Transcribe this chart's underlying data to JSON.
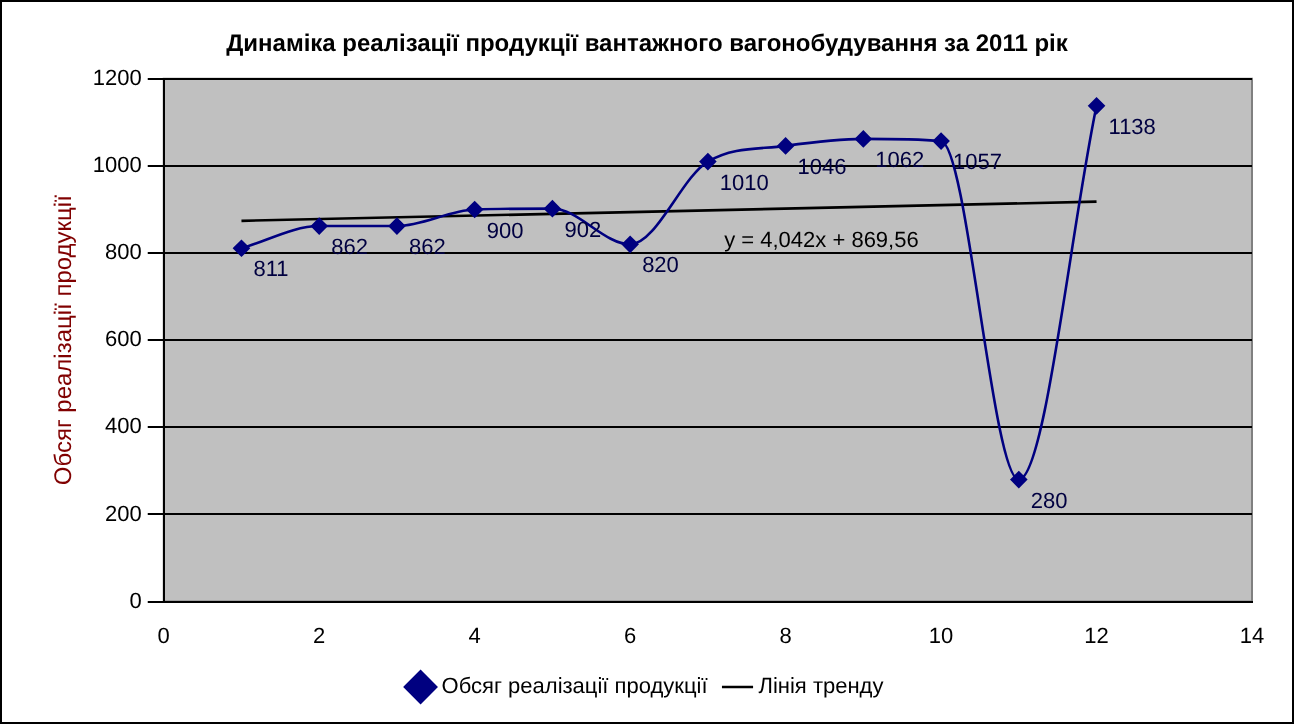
{
  "chart_data": {
    "type": "line",
    "title": "Динаміка реалізації продукції вантажного вагонобудування за 2011 рік",
    "ylabel": "Обсяг реалізації продукції",
    "xlim": [
      0,
      14
    ],
    "xticks": [
      0,
      2,
      4,
      6,
      8,
      10,
      12,
      14
    ],
    "ylim": [
      0,
      1200
    ],
    "yticks": [
      0,
      200,
      400,
      600,
      800,
      1000,
      1200
    ],
    "grid": "y",
    "legend": "bottom",
    "series": [
      {
        "name": "Обсяг реалізації продукції",
        "color": "#000080",
        "marker": "diamond",
        "x": [
          1,
          2,
          3,
          4,
          5,
          6,
          7,
          8,
          9,
          10,
          11,
          12
        ],
        "values": [
          811,
          862,
          862,
          900,
          902,
          820,
          1010,
          1046,
          1062,
          1057,
          280,
          1138
        ],
        "value_labels": [
          "811",
          "862",
          "862",
          "900",
          "902",
          "820",
          "1010",
          "1046",
          "1062",
          "1057",
          "280",
          "1138"
        ]
      },
      {
        "name": "Лінія тренду",
        "color": "#000000",
        "marker": "none",
        "x": [
          1,
          12
        ],
        "values": [
          874,
          918
        ]
      }
    ],
    "annotations": [
      "y = 4,042x + 869,56"
    ]
  }
}
